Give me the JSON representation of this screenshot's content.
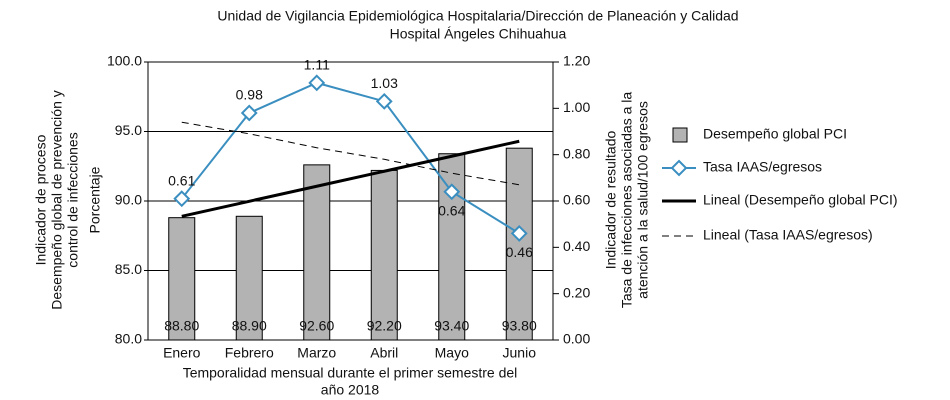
{
  "chart_data": {
    "type": "bar",
    "title": [
      "Unidad de Vigilancia Epidemiológica Hospitalaria/Dirección de Planeación y Calidad",
      "Hospital Ángeles Chihuahua"
    ],
    "y_label": [
      "Indicador de proceso",
      "Desempeño global de prevención y",
      "control de infecciones",
      "Porcentaje"
    ],
    "y2_label": [
      "Indicador de resultado",
      "Tasa de infecciones asociadas a la",
      "atención a la salud/100 egresos"
    ],
    "x_label": [
      "Temporalidad mensual durante el primer semestre del",
      "año 2018"
    ],
    "categories": [
      "Enero",
      "Febrero",
      "Marzo",
      "Abril",
      "Mayo",
      "Junio"
    ],
    "series": [
      {
        "name": "Desempeño global PCI",
        "type": "bar",
        "color": "#b3b3b3",
        "values": [
          88.8,
          88.9,
          92.6,
          92.2,
          93.4,
          93.8
        ],
        "value_labels": [
          "88.80",
          "88.90",
          "92.60",
          "92.20",
          "93.40",
          "93.80"
        ]
      },
      {
        "name": "Tasa IAAS/egresos",
        "type": "line",
        "axis": "y2",
        "color": "#3a8fc0",
        "marker": "diamond",
        "values": [
          0.61,
          0.98,
          1.11,
          1.03,
          0.64,
          0.46
        ]
      },
      {
        "name": "Lineal (Desempeño global PCI)",
        "type": "line",
        "color": "#000000",
        "values": [
          88.9,
          89.98,
          91.06,
          92.14,
          93.22,
          94.3
        ]
      },
      {
        "name": "Lineal (Tasa IAAS/egresos)",
        "type": "line",
        "axis": "y2",
        "color": "#000000",
        "dashed": true,
        "values": [
          0.94,
          0.89,
          0.83,
          0.78,
          0.72,
          0.67
        ]
      }
    ],
    "ylim": [
      80,
      100
    ],
    "yticks": [
      {
        "value": 80,
        "label": "80.0"
      },
      {
        "value": 85,
        "label": "85.0"
      },
      {
        "value": 90,
        "label": "90.0"
      },
      {
        "value": 95,
        "label": "95.0"
      },
      {
        "value": 100,
        "label": "100.0"
      }
    ],
    "y2lim": [
      0,
      1.2
    ],
    "y2ticks": [
      {
        "value": 0,
        "label": "0.00"
      },
      {
        "value": 0.2,
        "label": "0.20"
      },
      {
        "value": 0.4,
        "label": "0.40"
      },
      {
        "value": 0.6,
        "label": "0.60"
      },
      {
        "value": 0.8,
        "label": "0.80"
      },
      {
        "value": 1,
        "label": "1.00"
      },
      {
        "value": 1.2,
        "label": "1.20"
      }
    ],
    "grid": true,
    "legend": "right"
  }
}
